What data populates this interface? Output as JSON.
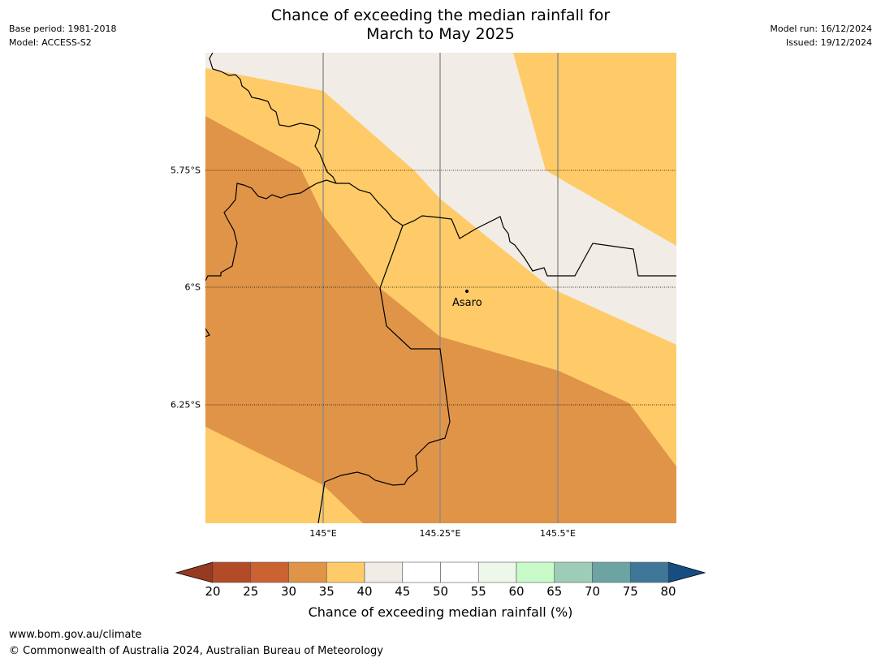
{
  "title": {
    "line1": "Chance of exceeding the median rainfall for",
    "line2": "March to May 2025"
  },
  "meta": {
    "base_period": "Base period: 1981-2018",
    "model": "Model: ACCESS-S2",
    "model_run": "Model run: 16/12/2024",
    "issued": "Issued: 19/12/2024"
  },
  "map": {
    "latitude_labels": [
      "5.75°S",
      "6°S",
      "6.25°S"
    ],
    "longitude_labels": [
      "145°E",
      "145.25°E",
      "145.5°E"
    ],
    "place": {
      "name": "Asaro"
    },
    "zone_colors": {
      "30-35": "#e09448",
      "35-40": "#fecb68",
      "40-45": "#f1ece5"
    }
  },
  "colorbar": {
    "labels": [
      "20",
      "25",
      "30",
      "35",
      "40",
      "45",
      "50",
      "55",
      "60",
      "65",
      "70",
      "75",
      "80"
    ],
    "colors": [
      "#b24b27",
      "#cb6231",
      "#e09448",
      "#fecb68",
      "#f1ece5",
      "#ffffff",
      "#ffffff",
      "#edf7ea",
      "#c8fbc9",
      "#9dcdb6",
      "#6ca4a4",
      "#3f7799"
    ],
    "under_color": "#963a21",
    "over_color": "#164e84",
    "title": "Chance of exceeding median rainfall (%)"
  },
  "footer": {
    "website": "www.bom.gov.au/climate",
    "copyright": "© Commonwealth of Australia 2024, Australian Bureau of Meteorology"
  }
}
